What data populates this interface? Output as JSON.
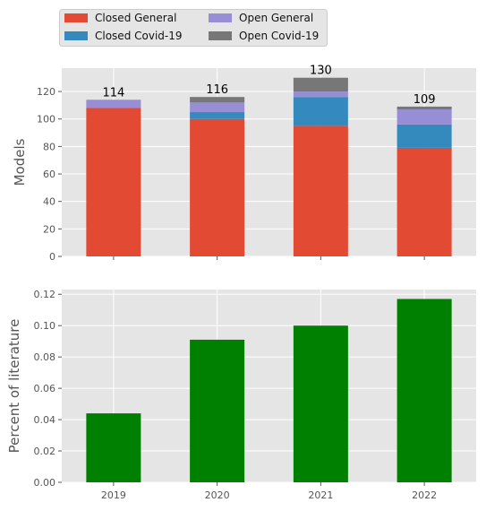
{
  "chart_data": [
    {
      "type": "bar",
      "stacked": true,
      "categories": [
        "2019",
        "2020",
        "2021",
        "2022"
      ],
      "series": [
        {
          "name": "Closed General",
          "color": "#E24A33",
          "values": [
            108,
            100,
            95,
            79
          ]
        },
        {
          "name": "Closed Covid-19",
          "color": "#348ABD",
          "values": [
            0,
            5,
            21,
            17
          ]
        },
        {
          "name": "Open General",
          "color": "#988ED5",
          "values": [
            6,
            7,
            4,
            11
          ]
        },
        {
          "name": "Open Covid-19",
          "color": "#777777",
          "values": [
            0,
            4,
            10,
            2
          ]
        }
      ],
      "totals": [
        "114",
        "116",
        "130",
        "109"
      ],
      "ylabel": "Models",
      "ylim": [
        0,
        137
      ],
      "yticks": [
        "0",
        "20",
        "40",
        "60",
        "80",
        "100",
        "120"
      ],
      "grid": true,
      "legend": "top-left, above plot, 2 columns"
    },
    {
      "type": "bar",
      "categories": [
        "2019",
        "2020",
        "2021",
        "2022"
      ],
      "values": [
        0.044,
        0.091,
        0.1,
        0.117
      ],
      "color": "#008000",
      "ylabel": "Percent of literature",
      "ylim": [
        0,
        0.123
      ],
      "yticks": [
        "0.00",
        "0.02",
        "0.04",
        "0.06",
        "0.08",
        "0.10",
        "0.12"
      ],
      "xticks": [
        "2019",
        "2020",
        "2021",
        "2022"
      ],
      "grid": true
    }
  ]
}
